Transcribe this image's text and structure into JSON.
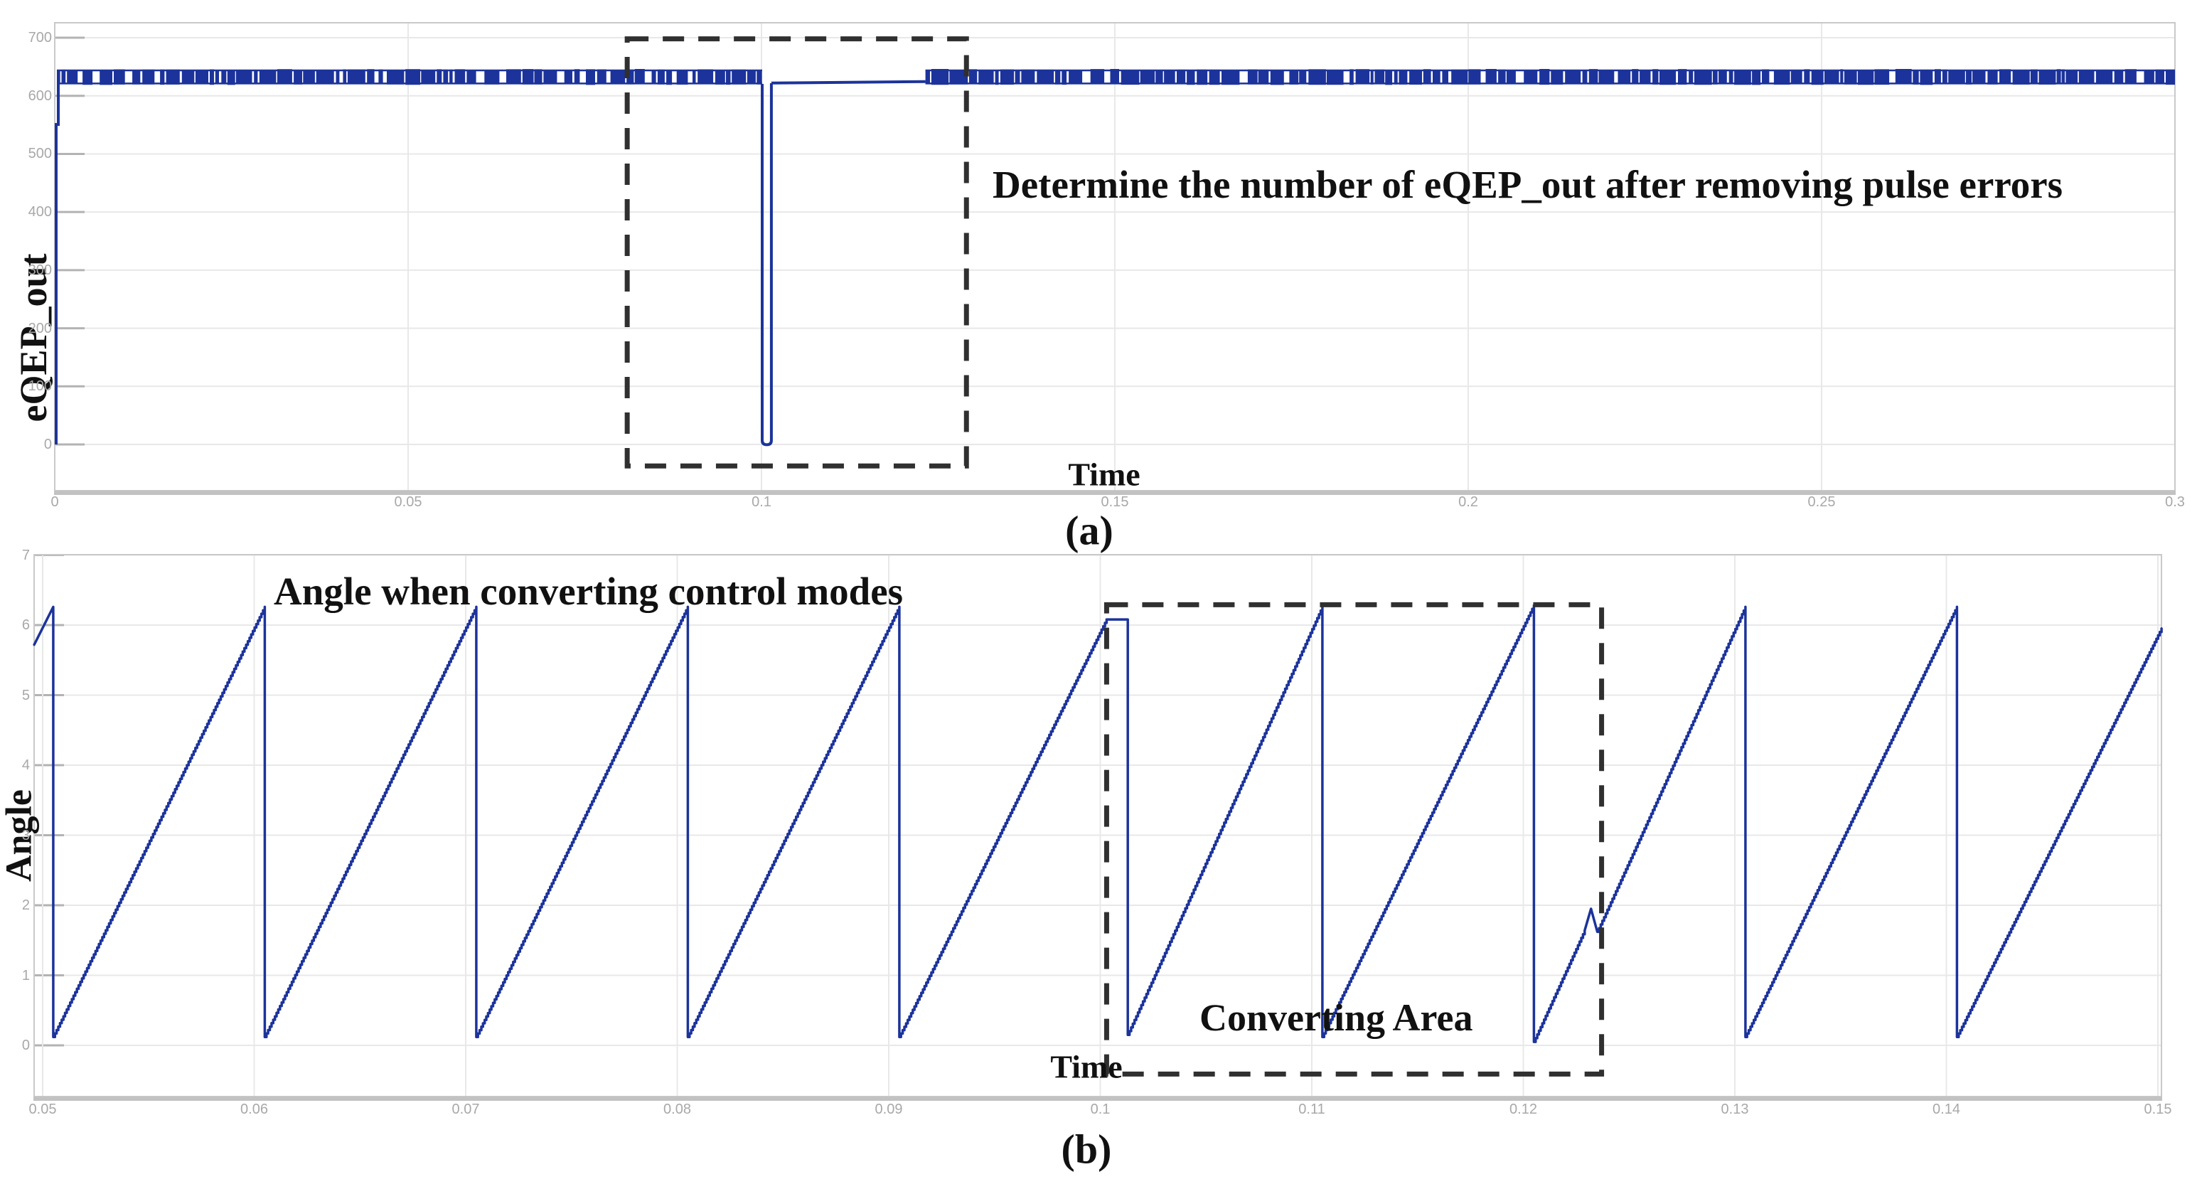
{
  "figure": {
    "background": "#ffffff"
  },
  "colors": {
    "curve": "#1c339b",
    "grid": "#e8e8e8",
    "grid_stub": "#b3b3b3",
    "frame": "#c9c9c9",
    "axis_heavy": "#c2c2c2",
    "dashed_box": "#303030",
    "tick_text": "#a8a8a8",
    "annotation_text": "#111111"
  },
  "panel_a": {
    "ylabel": "eQEP_out",
    "xlabel": "Time",
    "caption": "(a)",
    "annotation": "Determine the number of eQEP_out after removing pulse errors",
    "x_tick_labels": [
      "0",
      "0.05",
      "0.1",
      "0.15",
      "0.2",
      "0.25",
      "0.3"
    ],
    "y_tick_labels": [
      "0",
      "100",
      "200",
      "300",
      "400",
      "500",
      "600",
      "700"
    ]
  },
  "panel_b": {
    "title": "Angle when converting control modes",
    "ylabel": "Angle",
    "xlabel": "Time",
    "caption": "(b)",
    "annotation": "Converting Area",
    "x_tick_labels": [
      "0.05",
      "0.06",
      "0.07",
      "0.08",
      "0.09",
      "0.1",
      "0.11",
      "0.12",
      "0.13",
      "0.14",
      "0.15"
    ],
    "y_tick_labels": [
      "0",
      "1",
      "2",
      "3",
      "4",
      "5",
      "6",
      "7"
    ]
  },
  "chart_data": [
    {
      "panel": "a",
      "type": "line",
      "title": "",
      "xlabel": "Time",
      "ylabel": "eQEP_out",
      "xlim": [
        0,
        0.3
      ],
      "ylim": [
        -80,
        726
      ],
      "grid": true,
      "x_tick_values": [
        0,
        0.05,
        0.1,
        0.15,
        0.2,
        0.25,
        0.3
      ],
      "y_tick_values": [
        0,
        100,
        200,
        300,
        400,
        500,
        600,
        700
      ],
      "signal": {
        "description": "eQEP_out pulse counter output: dense pulse band between ~620 and ~645 with one dropout to 0 at t=0.1, then a pulse-free flat segment at ~622 until t=0.123 where pulses resume",
        "segments": [
          {
            "kind": "rise",
            "t": 0.0003,
            "from": 0,
            "to": 645
          },
          {
            "kind": "pulse_band",
            "t_start": 0.0003,
            "t_end": 0.1001,
            "v_low": 620,
            "v_high": 645
          },
          {
            "kind": "dropout",
            "t_start": 0.1001,
            "t_end": 0.1014,
            "v_min": 2
          },
          {
            "kind": "flat",
            "t_start": 0.1014,
            "t_end": 0.1232,
            "v": 622
          },
          {
            "kind": "pulse_band",
            "t_start": 0.1232,
            "t_end": 0.3,
            "v_low": 620,
            "v_high": 645
          }
        ]
      },
      "annotation_box": {
        "t_start": 0.081,
        "t_end": 0.129,
        "v_low": -37,
        "v_high": 698
      },
      "annotation": "Determine the number of eQEP_out after removing pulse errors"
    },
    {
      "panel": "b",
      "type": "line",
      "title": "Angle when converting control modes",
      "xlabel": "Time",
      "ylabel": "Angle",
      "xlim": [
        0.0496,
        0.1502
      ],
      "ylim": [
        -0.73,
        7.02
      ],
      "grid": true,
      "x_tick_values": [
        0.05,
        0.06,
        0.07,
        0.08,
        0.09,
        0.1,
        0.11,
        0.12,
        0.13,
        0.14,
        0.15
      ],
      "y_tick_values": [
        0,
        1,
        2,
        3,
        4,
        5,
        6,
        7
      ],
      "sawtooth": {
        "description": "Rotor angle sawtooth, period 0.01 s, ramps 0.1 -> 6.26 rad; plateau at ~6.08 during 0.1003-0.1013 (mode conversion) and small glitch at t=0.1233 (v~1.8)",
        "period": 0.01,
        "v_min": 0.12,
        "v_max": 6.26,
        "reset_times": [
          0.0505,
          0.0605,
          0.0705,
          0.0805,
          0.0905,
          0.1013,
          0.1105,
          0.1205,
          0.1305,
          0.1405
        ],
        "plateau": {
          "t_start": 0.1003,
          "t_end": 0.1013,
          "v": 6.08
        },
        "glitch": {
          "t": 0.1233,
          "v_peak": 1.95,
          "v_dip": 1.62
        },
        "keypoints": [
          [
            0.0496,
            5.72
          ],
          [
            0.0505,
            6.26
          ],
          [
            0.0505,
            0.12
          ],
          [
            0.0605,
            6.26
          ],
          [
            0.0605,
            0.12
          ],
          [
            0.0705,
            6.26
          ],
          [
            0.0705,
            0.12
          ],
          [
            0.0805,
            6.26
          ],
          [
            0.0805,
            0.12
          ],
          [
            0.0905,
            6.26
          ],
          [
            0.0905,
            0.12
          ],
          [
            0.1003,
            6.08
          ],
          [
            0.1013,
            6.08
          ],
          [
            0.1013,
            0.15
          ],
          [
            0.1105,
            6.26
          ],
          [
            0.1105,
            0.12
          ],
          [
            0.1205,
            6.28
          ],
          [
            0.1205,
            0.05
          ],
          [
            0.1229,
            1.64
          ],
          [
            0.1232,
            1.95
          ],
          [
            0.1235,
            1.62
          ],
          [
            0.1305,
            6.26
          ],
          [
            0.1305,
            0.12
          ],
          [
            0.1405,
            6.26
          ],
          [
            0.1405,
            0.12
          ],
          [
            0.15017,
            5.95
          ]
        ]
      },
      "annotation_box": {
        "t_start": 0.1003,
        "t_end": 0.1237,
        "v_low": -0.41,
        "v_high": 6.29
      },
      "annotation": "Converting Area"
    }
  ]
}
